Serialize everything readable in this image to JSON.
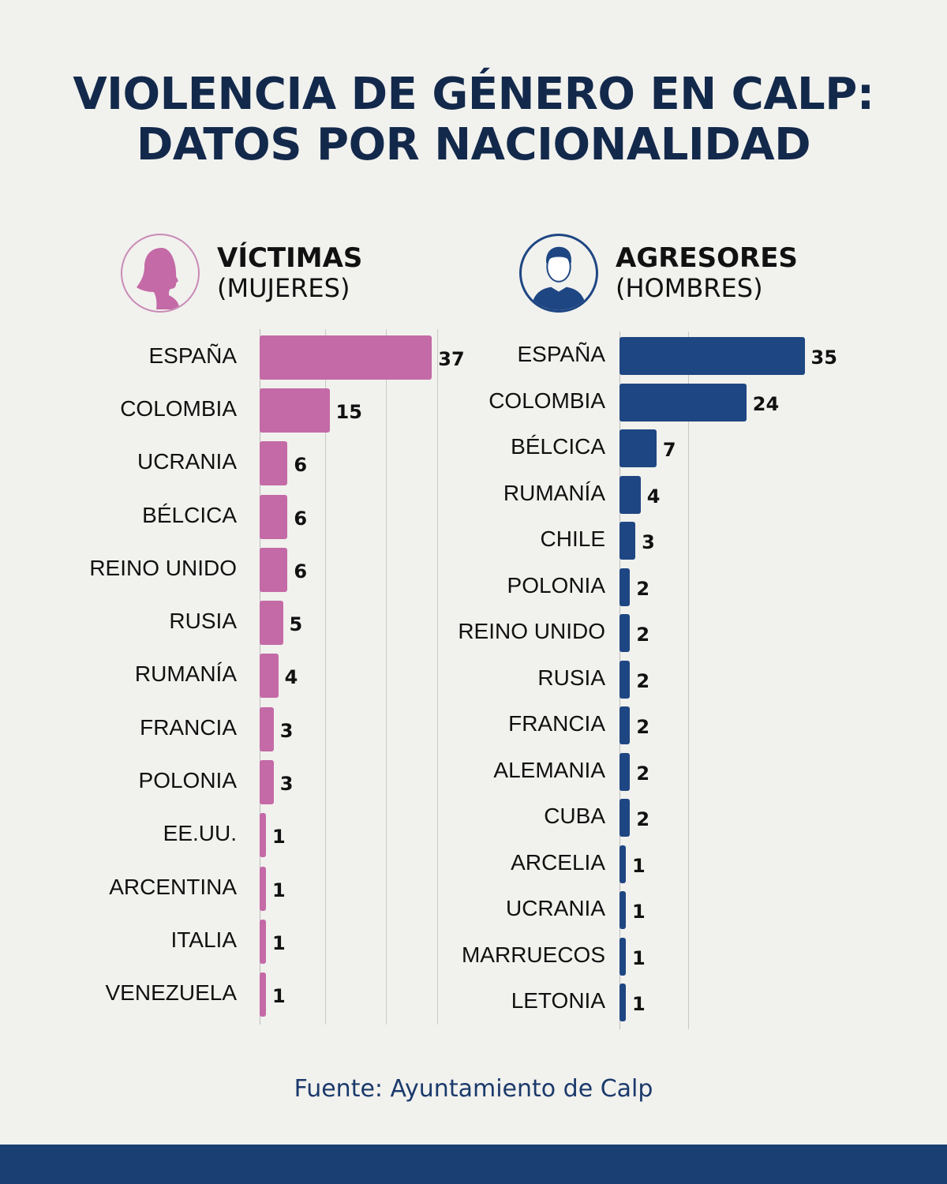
{
  "title_line1": "VIOLENCIA DE GÉNERO EN CALP:",
  "title_line2": "DATOS POR NACIONALIDAD",
  "source": "Fuente: Ayuntamiento de Calp",
  "colors": {
    "victims": "#c46aa6",
    "aggressors": "#1e4682",
    "title": "#13294b",
    "band": "#1a3f73"
  },
  "chart_data": [
    {
      "type": "bar",
      "orientation": "horizontal",
      "title": "VÍCTIMAS",
      "subtitle": "(MUJERES)",
      "icon": "woman-profile-icon",
      "color": "#c46aa6",
      "categories": [
        "ESPAÑA",
        "COLOMBIA",
        "UCRANIA",
        "BÉLCICA",
        "REINO UNIDO",
        "RUSIA",
        "RUMANÍA",
        "FRANCIA",
        "POLONIA",
        "EE.UU.",
        "ARCENTINA",
        "ITALIA",
        "VENEZUELA"
      ],
      "values": [
        37,
        15,
        6,
        6,
        6,
        5,
        4,
        3,
        3,
        1,
        1,
        1,
        1
      ],
      "data_labels": true,
      "grid": true
    },
    {
      "type": "bar",
      "orientation": "horizontal",
      "title": "AGRESORES",
      "subtitle": "(HOMBRES)",
      "icon": "man-avatar-icon",
      "color": "#1e4682",
      "categories": [
        "ESPAÑA",
        "COLOMBIA",
        "BÉLCICA",
        "RUMANÍA",
        "CHILE",
        "POLONIA",
        "REINO UNIDO",
        "RUSIA",
        "FRANCIA",
        "ALEMANIA",
        "CUBA",
        "ARCELIA",
        "UCRANIA",
        "MARRUECOS",
        "LETONIA"
      ],
      "values": [
        35,
        24,
        7,
        4,
        3,
        2,
        2,
        2,
        2,
        2,
        2,
        1,
        1,
        1,
        1
      ],
      "data_labels": true,
      "grid": true
    }
  ]
}
